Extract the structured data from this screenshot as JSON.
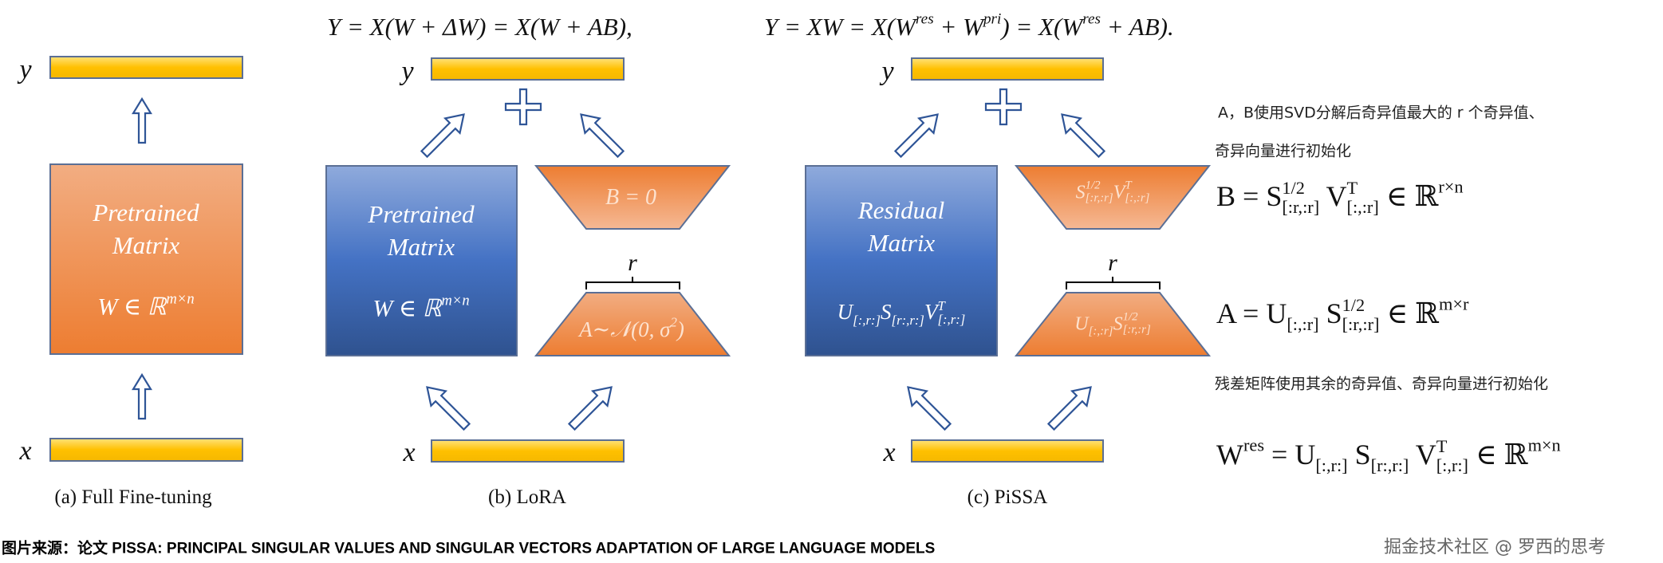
{
  "colors": {
    "orange": "#ed7d31",
    "blue": "#2f5597",
    "yellow": "#ffc000",
    "arrow_outline": "#2f5597"
  },
  "top_formulas": {
    "lora": [
      "Y = X(W + ΔW) = X(W + AB),"
    ],
    "pissa": [
      "Y = XW = X(W",
      {
        "sup": "res"
      },
      " + W",
      {
        "sup": "pri"
      },
      ") = X(W",
      {
        "sup": "res"
      },
      " + AB)."
    ]
  },
  "panels": {
    "full": {
      "y_label": "y",
      "x_label": "x",
      "box_line1": "Pretrained",
      "box_line2": "Matrix",
      "box_formula": [
        "W ∈ ℝ",
        {
          "sup": "m×n"
        }
      ],
      "caption": "(a) Full Fine-tuning"
    },
    "lora": {
      "y_label": "y",
      "x_label": "x",
      "box_line1": "Pretrained",
      "box_line2": "Matrix",
      "box_formula": [
        "W ∈ ℝ",
        {
          "sup": "m×n"
        }
      ],
      "b_formula": [
        "B = 0"
      ],
      "a_formula": [
        "A∼𝒩(0, σ",
        {
          "sup": "2"
        },
        ")"
      ],
      "rank_label": "r",
      "caption": "(b) LoRA"
    },
    "pissa": {
      "y_label": "y",
      "x_label": "x",
      "box_line1": "Residual",
      "box_line2": "Matrix",
      "box_formula": [
        "U",
        {
          "sub": "[:,r:]"
        },
        "S",
        {
          "sub": "[r:,r:]"
        },
        "V",
        {
          "sup": "T",
          "sub": "[:,r:]"
        }
      ],
      "b_formula": [
        "S",
        {
          "sup": "1/2",
          "sub": "[:r,:r]"
        },
        "V",
        {
          "sup": "T",
          "sub": "[:,:r]"
        }
      ],
      "a_formula": [
        "U",
        {
          "sub": "[:,:r]"
        },
        "S",
        {
          "sup": "1/2",
          "sub": "[:r,:r]"
        }
      ],
      "rank_label": "r",
      "caption": "(c) PiSSA"
    }
  },
  "notes": {
    "ab_init_line1": "A，B使用SVD分解后奇异值最大的 r 个奇异值、",
    "ab_init_line2": "奇异向量进行初始化",
    "b_formula": [
      "B = S",
      {
        "sup": "1/2",
        "sub": "[:r,:r]"
      },
      " V",
      {
        "sup": "T",
        "sub": "[:,:r]"
      },
      " ∈ ℝ",
      {
        "sup": "r×n"
      }
    ],
    "a_formula": [
      "A = U",
      {
        "sub": "[:,:r]"
      },
      " S",
      {
        "sup": "1/2",
        "sub": "[:r,:r]"
      },
      " ∈ ℝ",
      {
        "sup": "m×r"
      }
    ],
    "res_init": "残差矩阵使用其余的奇异值、奇异向量进行初始化",
    "w_res_formula": [
      "W",
      {
        "sup": "res"
      },
      " = U",
      {
        "sub": "[:,r:]"
      },
      " S",
      {
        "sub": "[r:,r:]"
      },
      " V",
      {
        "sup": "T",
        "sub": "[:,r:]"
      },
      " ∈ ℝ",
      {
        "sup": "m×n"
      }
    ]
  },
  "footer": {
    "source": "图片来源：论文 PISSA: PRINCIPAL SINGULAR VALUES AND SINGULAR VECTORS ADAPTATION OF LARGE LANGUAGE MODELS",
    "watermark": "掘金技术社区 @ 罗西的思考"
  }
}
